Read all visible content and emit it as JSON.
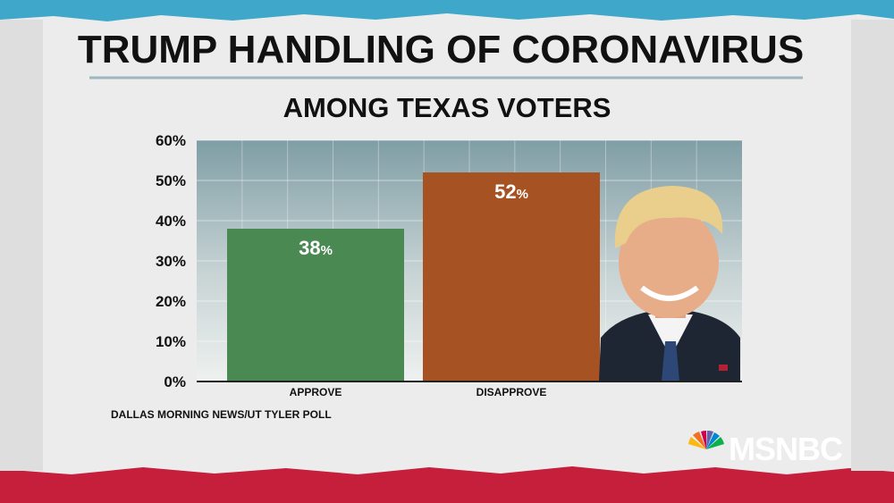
{
  "title": "TRUMP HANDLING OF CORONAVIRUS",
  "subtitle": "AMONG TEXAS VOTERS",
  "source": "DALLAS MORNING NEWS/UT TYLER POLL",
  "network_logo": "MSNBC",
  "icons": {
    "photo": "portrait-photo",
    "logo": "peacock-icon"
  },
  "colors": {
    "approve": "#4a8a52",
    "disapprove": "#a65222",
    "background": "#ececec",
    "top_band": "#3fa7c9",
    "bottom_band": "#c51f3c"
  },
  "chart_data": {
    "type": "bar",
    "title": "TRUMP HANDLING OF CORONAVIRUS",
    "subtitle": "AMONG TEXAS VOTERS",
    "categories": [
      "APPROVE",
      "DISAPPROVE"
    ],
    "values": [
      38,
      52
    ],
    "value_labels": [
      "38",
      "52"
    ],
    "value_suffix": "%",
    "ylim": [
      0,
      60
    ],
    "yticks": [
      "0%",
      "10%",
      "20%",
      "30%",
      "40%",
      "50%",
      "60%"
    ],
    "grid": true
  }
}
